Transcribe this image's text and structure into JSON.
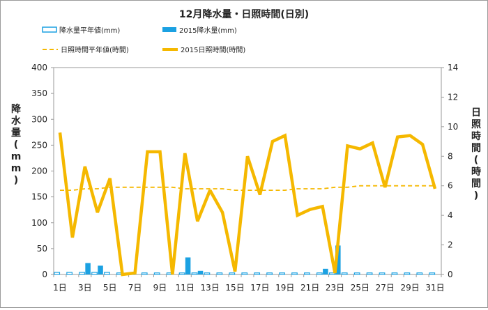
{
  "chart_data": {
    "type": "bar+line",
    "title": "12月降水量・日照時間(日別)",
    "categories": [
      "1日",
      "2日",
      "3日",
      "4日",
      "5日",
      "6日",
      "7日",
      "8日",
      "9日",
      "10日",
      "11日",
      "12日",
      "13日",
      "14日",
      "15日",
      "16日",
      "17日",
      "18日",
      "19日",
      "20日",
      "21日",
      "22日",
      "23日",
      "24日",
      "25日",
      "26日",
      "27日",
      "28日",
      "29日",
      "30日",
      "31日"
    ],
    "x_tick_labels": [
      "1日",
      "3日",
      "5日",
      "7日",
      "9日",
      "11日",
      "13日",
      "15日",
      "17日",
      "19日",
      "21日",
      "23日",
      "25日",
      "27日",
      "29日",
      "31日"
    ],
    "y_left": {
      "label": "降水量(mm)",
      "lim": [
        0,
        400
      ],
      "ticks": [
        0,
        50,
        100,
        150,
        200,
        250,
        300,
        350,
        400
      ]
    },
    "y_right": {
      "label": "日照時間(時間)",
      "lim": [
        0,
        14
      ],
      "ticks": [
        0,
        2,
        4,
        6,
        8,
        10,
        12,
        14
      ]
    },
    "legend_position": "top-left",
    "series": [
      {
        "name": "降水量平年値(mm)",
        "kind": "bar",
        "axis": "left",
        "color": "#1ba1e2",
        "style": "outline",
        "values": [
          4,
          4,
          4,
          4,
          4,
          3,
          3,
          3,
          3,
          3,
          3,
          3,
          3,
          3,
          3,
          3,
          3,
          3,
          3,
          3,
          3,
          3,
          3,
          3,
          3,
          3,
          3,
          3,
          3,
          3,
          3
        ]
      },
      {
        "name": "2015降水量(mm)",
        "kind": "bar",
        "axis": "left",
        "color": "#1ba1e2",
        "style": "filled",
        "values": [
          0,
          0,
          22,
          17,
          0,
          0,
          0,
          0,
          0,
          0,
          33,
          7,
          0,
          0,
          0,
          0,
          0,
          0,
          0,
          0,
          0,
          11,
          56,
          0,
          0,
          0,
          0,
          0,
          0,
          0,
          0
        ]
      },
      {
        "name": "日照時間平年値(時間)",
        "kind": "line",
        "axis": "right",
        "color": "#f5b800",
        "style": "dashed",
        "values": [
          5.7,
          5.7,
          5.8,
          5.8,
          5.9,
          5.9,
          5.9,
          5.9,
          5.9,
          5.9,
          5.8,
          5.8,
          5.8,
          5.8,
          5.7,
          5.7,
          5.7,
          5.7,
          5.7,
          5.8,
          5.8,
          5.8,
          5.9,
          5.9,
          6.0,
          6.0,
          6.0,
          6.0,
          6.0,
          6.0,
          6.0
        ]
      },
      {
        "name": "2015日照時間(時間)",
        "kind": "line",
        "axis": "right",
        "color": "#f5b800",
        "style": "solid",
        "values": [
          9.6,
          2.5,
          7.3,
          4.2,
          6.5,
          0.0,
          0.1,
          8.3,
          8.3,
          0.0,
          8.2,
          3.6,
          5.7,
          4.2,
          0.2,
          8.0,
          5.4,
          9.0,
          9.4,
          4.0,
          4.4,
          4.6,
          0.1,
          8.7,
          8.5,
          8.9,
          5.9,
          9.3,
          9.4,
          8.8,
          5.8
        ]
      }
    ]
  }
}
